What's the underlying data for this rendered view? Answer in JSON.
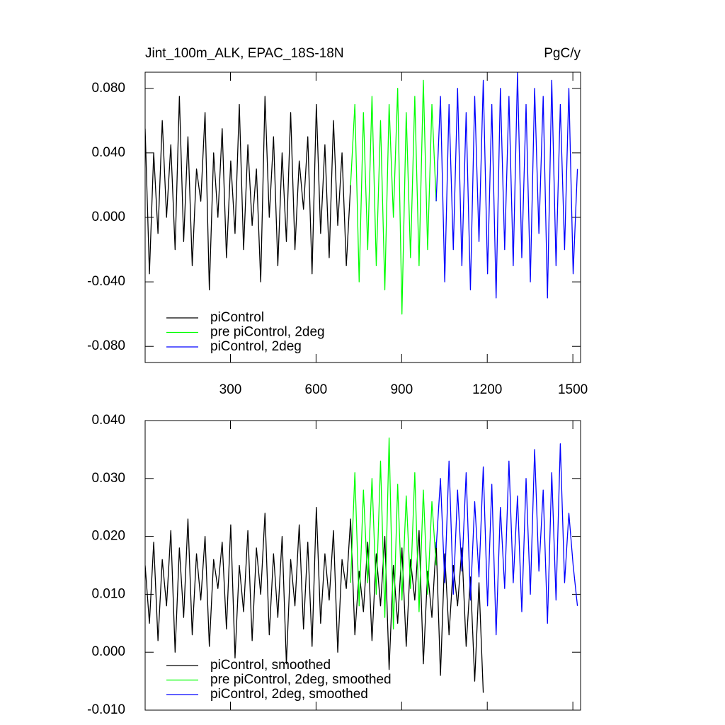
{
  "chart_data": [
    {
      "type": "line",
      "title": "Jint_100m_ALK, EPAC_18S-18N",
      "units": "PgC/y",
      "xlim": [
        1,
        1527
      ],
      "xticks": [
        300,
        600,
        900,
        1200,
        1500
      ],
      "ylim": [
        -0.09,
        0.09
      ],
      "yticks": [
        {
          "value": 0.08,
          "label": "0.080"
        },
        {
          "value": 0.04,
          "label": "0.040"
        },
        {
          "value": 0,
          "label": "0.000"
        },
        {
          "value": -0.04,
          "label": "-0.040"
        },
        {
          "value": -0.08,
          "label": "-0.080"
        }
      ],
      "legend": "lower left",
      "series": [
        {
          "name": "piControl",
          "color": "#000000",
          "x": [
            1,
            16,
            31,
            46,
            61,
            76,
            91,
            106,
            121,
            136,
            151,
            166,
            181,
            196,
            211,
            226,
            241,
            256,
            271,
            286,
            301,
            316,
            331,
            346,
            361,
            376,
            391,
            406,
            421,
            436,
            451,
            466,
            481,
            496,
            511,
            526,
            541,
            556,
            571,
            586,
            601,
            616,
            631,
            646,
            661,
            676,
            691,
            706,
            721
          ],
          "values": [
            0.055,
            -0.035,
            0.04,
            -0.01,
            0.06,
            0.0,
            0.045,
            -0.02,
            0.075,
            -0.015,
            0.05,
            -0.03,
            0.03,
            0.01,
            0.065,
            -0.045,
            0.04,
            0.0,
            0.055,
            -0.025,
            0.035,
            -0.01,
            0.07,
            -0.02,
            0.045,
            -0.005,
            0.03,
            -0.04,
            0.075,
            0.0,
            0.05,
            -0.03,
            0.04,
            -0.015,
            0.065,
            -0.02,
            0.035,
            0.005,
            0.05,
            -0.035,
            0.07,
            -0.01,
            0.045,
            -0.025,
            0.06,
            -0.005,
            0.04,
            -0.03,
            0.02
          ]
        },
        {
          "name": "pre piControl, 2deg",
          "color": "#00ff00",
          "x": [
            721,
            736,
            751,
            766,
            781,
            796,
            811,
            826,
            841,
            856,
            871,
            886,
            901,
            916,
            931,
            946,
            961,
            976,
            991,
            1006,
            1021
          ],
          "values": [
            0.02,
            0.07,
            -0.04,
            0.065,
            -0.02,
            0.075,
            -0.03,
            0.06,
            -0.045,
            0.07,
            0.0,
            0.08,
            -0.06,
            0.065,
            -0.025,
            0.075,
            -0.03,
            0.085,
            -0.02,
            0.07,
            0.01
          ]
        },
        {
          "name": "piControl, 2deg",
          "color": "#0000ff",
          "x": [
            1021,
            1036,
            1051,
            1066,
            1081,
            1096,
            1111,
            1126,
            1141,
            1156,
            1171,
            1186,
            1201,
            1216,
            1231,
            1246,
            1261,
            1276,
            1291,
            1306,
            1321,
            1336,
            1351,
            1366,
            1381,
            1396,
            1411,
            1426,
            1441,
            1456,
            1471,
            1486,
            1501,
            1516
          ],
          "values": [
            0.01,
            0.075,
            -0.04,
            0.07,
            -0.02,
            0.08,
            -0.03,
            0.065,
            -0.045,
            0.075,
            -0.015,
            0.085,
            -0.035,
            0.07,
            -0.05,
            0.08,
            -0.02,
            0.075,
            -0.03,
            0.09,
            -0.025,
            0.07,
            -0.04,
            0.08,
            -0.01,
            0.075,
            -0.05,
            0.085,
            -0.03,
            0.07,
            -0.02,
            0.08,
            -0.035,
            0.03
          ]
        }
      ]
    },
    {
      "type": "line",
      "xlim": [
        1,
        1527
      ],
      "xticks": [
        300,
        600,
        900,
        1200,
        1500
      ],
      "ylim": [
        -0.01,
        0.04
      ],
      "yticks": [
        {
          "value": 0.04,
          "label": "0.040"
        },
        {
          "value": 0.03,
          "label": "0.030"
        },
        {
          "value": 0.02,
          "label": "0.020"
        },
        {
          "value": 0.01,
          "label": "0.010"
        },
        {
          "value": 0,
          "label": "0.000"
        },
        {
          "value": -0.01,
          "label": "-0.010"
        }
      ],
      "legend": "lower left",
      "series": [
        {
          "name": "piControl, smoothed",
          "color": "#000000",
          "x": [
            1,
            16,
            31,
            46,
            61,
            76,
            91,
            106,
            121,
            136,
            151,
            166,
            181,
            196,
            211,
            226,
            241,
            256,
            271,
            286,
            301,
            316,
            331,
            346,
            361,
            376,
            391,
            406,
            421,
            436,
            451,
            466,
            481,
            496,
            511,
            526,
            541,
            556,
            571,
            586,
            601,
            616,
            631,
            646,
            661,
            676,
            691,
            706,
            721,
            736,
            751,
            766,
            781,
            796,
            811,
            826,
            841,
            856,
            871,
            886,
            901,
            916,
            931,
            946,
            961,
            976,
            991,
            1006,
            1021,
            1036,
            1051,
            1066,
            1081,
            1096,
            1111,
            1126,
            1141,
            1156,
            1171,
            1186
          ],
          "values": [
            0.015,
            0.005,
            0.019,
            0.002,
            0.016,
            0.008,
            0.021,
            0.0,
            0.018,
            0.006,
            0.023,
            0.003,
            0.017,
            0.009,
            0.02,
            0.001,
            0.016,
            0.011,
            0.019,
            0.004,
            0.022,
            -0.001,
            0.015,
            0.007,
            0.021,
            0.002,
            0.018,
            0.01,
            0.024,
            0.003,
            0.017,
            0.006,
            0.02,
            -0.002,
            0.016,
            0.008,
            0.022,
            0.004,
            0.019,
            0.001,
            0.025,
            0.005,
            0.017,
            0.009,
            0.021,
            0.0,
            0.016,
            0.011,
            0.023,
            0.003,
            0.014,
            0.007,
            0.019,
            0.002,
            0.017,
            0.008,
            0.02,
            -0.003,
            0.015,
            0.005,
            0.018,
            0.001,
            0.016,
            0.009,
            0.021,
            -0.002,
            0.014,
            0.006,
            0.019,
            -0.004,
            0.017,
            0.003,
            0.015,
            0.008,
            0.018,
            0.001,
            0.013,
            -0.005,
            0.012,
            -0.007
          ]
        },
        {
          "name": "pre piControl, 2deg, smoothed",
          "color": "#00ff00",
          "x": [
            721,
            736,
            751,
            766,
            781,
            796,
            811,
            826,
            841,
            856,
            871,
            886,
            901,
            916,
            931,
            946,
            961,
            976,
            991,
            1006,
            1021
          ],
          "values": [
            0.012,
            0.031,
            0.008,
            0.028,
            0.012,
            0.03,
            0.01,
            0.033,
            0.006,
            0.037,
            0.004,
            0.029,
            0.009,
            0.027,
            0.011,
            0.031,
            0.007,
            0.028,
            0.01,
            0.026,
            0.015
          ]
        },
        {
          "name": "piControl, 2deg, smoothed",
          "color": "#0000ff",
          "x": [
            1021,
            1036,
            1051,
            1066,
            1081,
            1096,
            1111,
            1126,
            1141,
            1156,
            1171,
            1186,
            1201,
            1216,
            1231,
            1246,
            1261,
            1276,
            1291,
            1306,
            1321,
            1336,
            1351,
            1366,
            1381,
            1396,
            1411,
            1426,
            1441,
            1456,
            1471,
            1486,
            1501,
            1516
          ],
          "values": [
            0.018,
            0.03,
            0.012,
            0.033,
            0.01,
            0.028,
            0.014,
            0.031,
            0.009,
            0.026,
            0.013,
            0.032,
            0.008,
            0.029,
            0.003,
            0.025,
            0.011,
            0.033,
            0.012,
            0.027,
            0.007,
            0.03,
            0.01,
            0.035,
            0.014,
            0.028,
            0.005,
            0.031,
            0.009,
            0.036,
            0.012,
            0.024,
            0.015,
            0.008
          ]
        }
      ]
    }
  ]
}
